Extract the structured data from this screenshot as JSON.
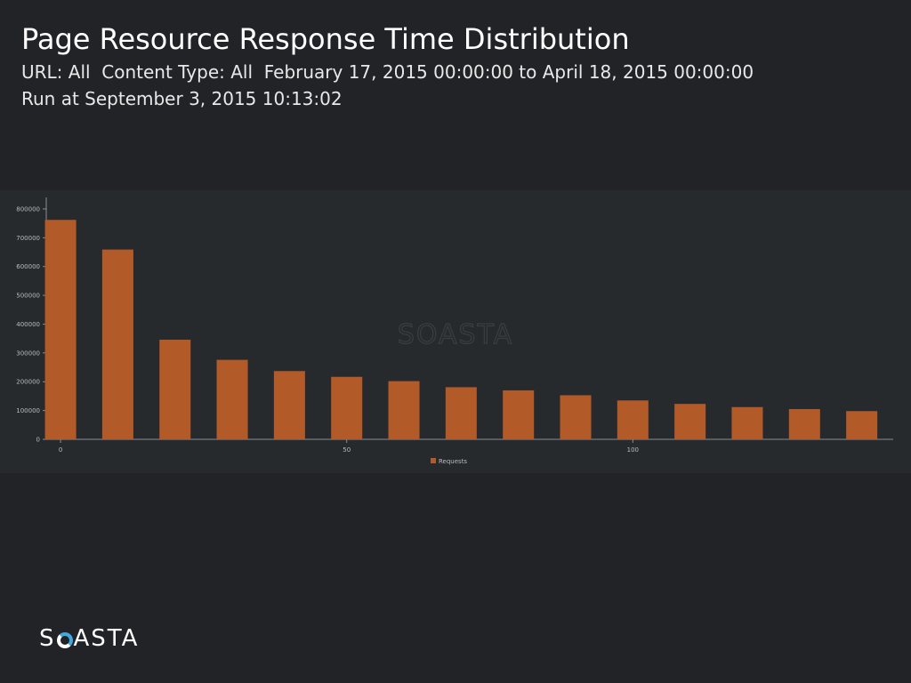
{
  "header": {
    "title": "Page Resource Response Time Distribution",
    "subtitle": "URL: All  Content Type: All  February 17, 2015 00:00:00 to April 18, 2015 00:00:00",
    "run_at": "Run at September 3, 2015 10:13:02"
  },
  "colors": {
    "background": "#222326",
    "panel": "#272a2d",
    "bar": "#b35a29",
    "axis": "#8a8d92",
    "tick_text": "#b8bbbf",
    "watermark": "#3a3d41"
  },
  "watermark": "SOASTA",
  "logo": {
    "text_before": "S",
    "text_after": "ASTA"
  },
  "chart_data": {
    "type": "bar",
    "title": "",
    "xlabel": "",
    "ylabel": "",
    "x": [
      0,
      10,
      20,
      30,
      40,
      50,
      60,
      70,
      80,
      90,
      100,
      110,
      120,
      130,
      140
    ],
    "series": [
      {
        "name": "Requests",
        "values": [
          762000,
          659000,
          346000,
          276000,
          237000,
          217000,
          202000,
          181000,
          170000,
          153000,
          135000,
          123000,
          112000,
          105000,
          98000
        ]
      }
    ],
    "x_ticks": [
      0,
      50,
      100
    ],
    "y_ticks": [
      0,
      100000,
      200000,
      300000,
      400000,
      500000,
      600000,
      700000,
      800000
    ],
    "ylim": [
      0,
      840000
    ],
    "legend": "bottom-center",
    "grid": false
  }
}
